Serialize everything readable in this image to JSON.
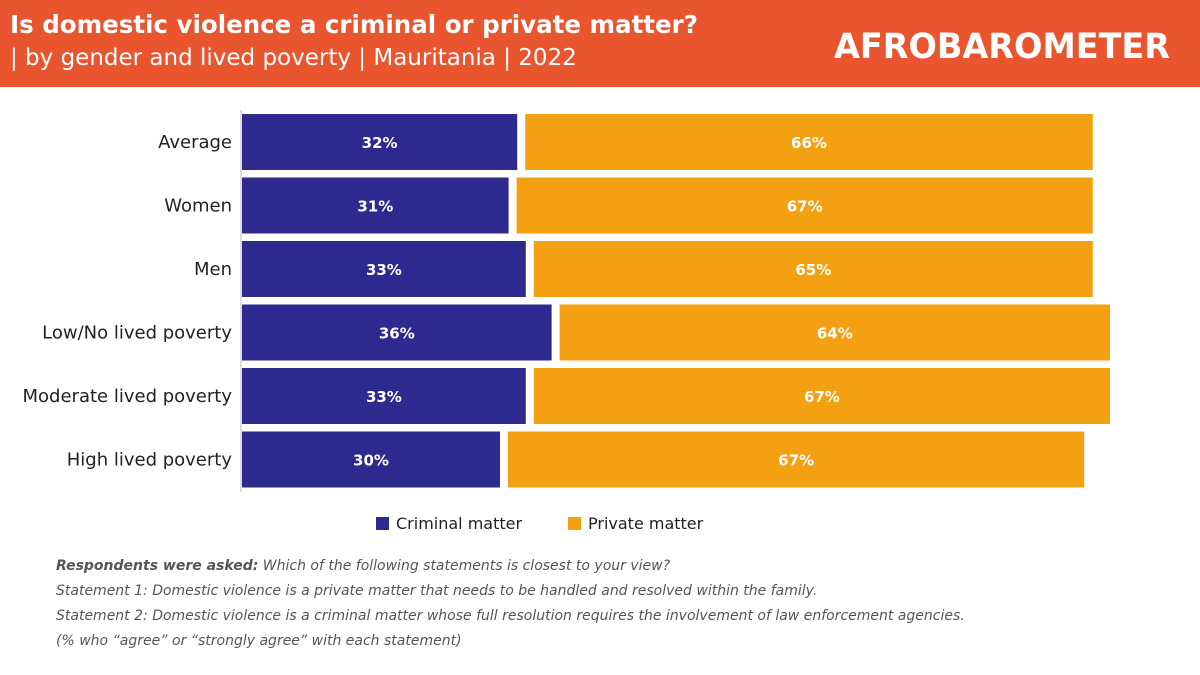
{
  "header": {
    "title": "Is domestic violence a criminal or private matter?",
    "subtitle": "| by gender and lived poverty | Mauritania | 2022",
    "logo": "AFROBAROMETER"
  },
  "colors": {
    "header_bg": "#e8552f",
    "criminal": "#2c2a8f",
    "private": "#f3a112"
  },
  "chart_data": {
    "type": "bar",
    "orientation": "horizontal",
    "stacked": true,
    "title": "Is domestic violence a criminal or private matter?",
    "categories": [
      "Average",
      "Women",
      "Men",
      "Low/No lived poverty",
      "Moderate lived poverty",
      "High lived poverty"
    ],
    "series": [
      {
        "name": "Criminal matter",
        "values": [
          32,
          31,
          33,
          36,
          33,
          30
        ],
        "labels": [
          "32%",
          "31%",
          "33%",
          "36%",
          "33%",
          "30%"
        ]
      },
      {
        "name": "Private matter",
        "values": [
          66,
          67,
          65,
          64,
          67,
          67
        ],
        "labels": [
          "66%",
          "67%",
          "65%",
          "64%",
          "67%",
          "67%"
        ]
      }
    ],
    "xlim": [
      0,
      100
    ],
    "legend": "bottom",
    "grid": false
  },
  "notes": {
    "question_lead": "Respondents were asked:",
    "question": "Which of the following statements is closest to your view?",
    "statement1": "Statement 1: Domestic violence is a private matter that needs to be handled and resolved within the family.",
    "statement2": "Statement 2: Domestic violence is a criminal matter whose full resolution requires the involvement of law enforcement agencies.",
    "footnote": "(% who “agree” or “strongly agree” with each statement)"
  }
}
